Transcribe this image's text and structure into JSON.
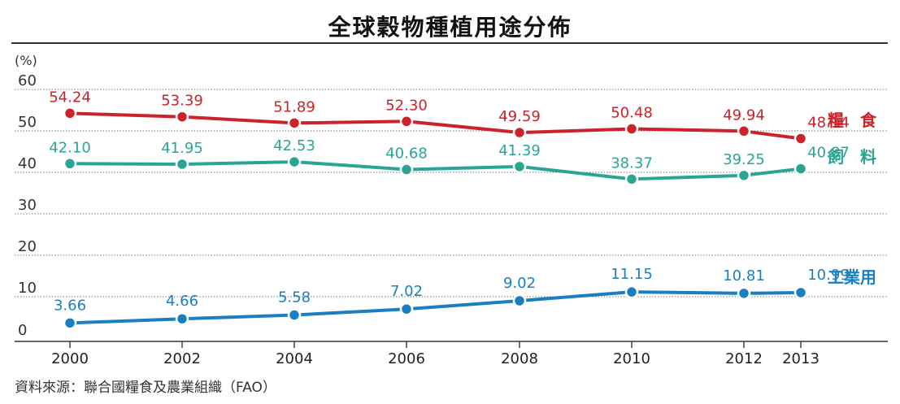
{
  "title": "全球穀物種植用途分佈",
  "source": "資料來源：聯合國糧食及農業組織（FAO）",
  "colors": {
    "food": "#cc2229",
    "feed": "#2aa595",
    "industrial": "#1a7fc1",
    "grid": "#777777",
    "axis": "#333333"
  },
  "chart_data": {
    "type": "line",
    "title": "全球穀物種植用途分佈",
    "ylabel": "(%)",
    "xlabel": "",
    "x": [
      "2000",
      "2002",
      "2004",
      "2006",
      "2008",
      "2010",
      "2012",
      "2013"
    ],
    "ylim": [
      0,
      60
    ],
    "yticks": [
      0,
      10,
      20,
      30,
      40,
      50,
      60
    ],
    "grid": true,
    "legend": "series labels at right end of lines",
    "series": [
      {
        "name": "糧　食",
        "key": "food",
        "values": [
          54.24,
          53.39,
          51.89,
          52.3,
          49.59,
          50.48,
          49.94,
          48.14
        ]
      },
      {
        "name": "飼　料",
        "key": "feed",
        "values": [
          42.1,
          41.95,
          42.53,
          40.68,
          41.39,
          38.37,
          39.25,
          40.87
        ]
      },
      {
        "name": "工業用",
        "key": "industrial",
        "values": [
          3.66,
          4.66,
          5.58,
          7.02,
          9.02,
          11.15,
          10.81,
          10.99
        ]
      }
    ]
  }
}
